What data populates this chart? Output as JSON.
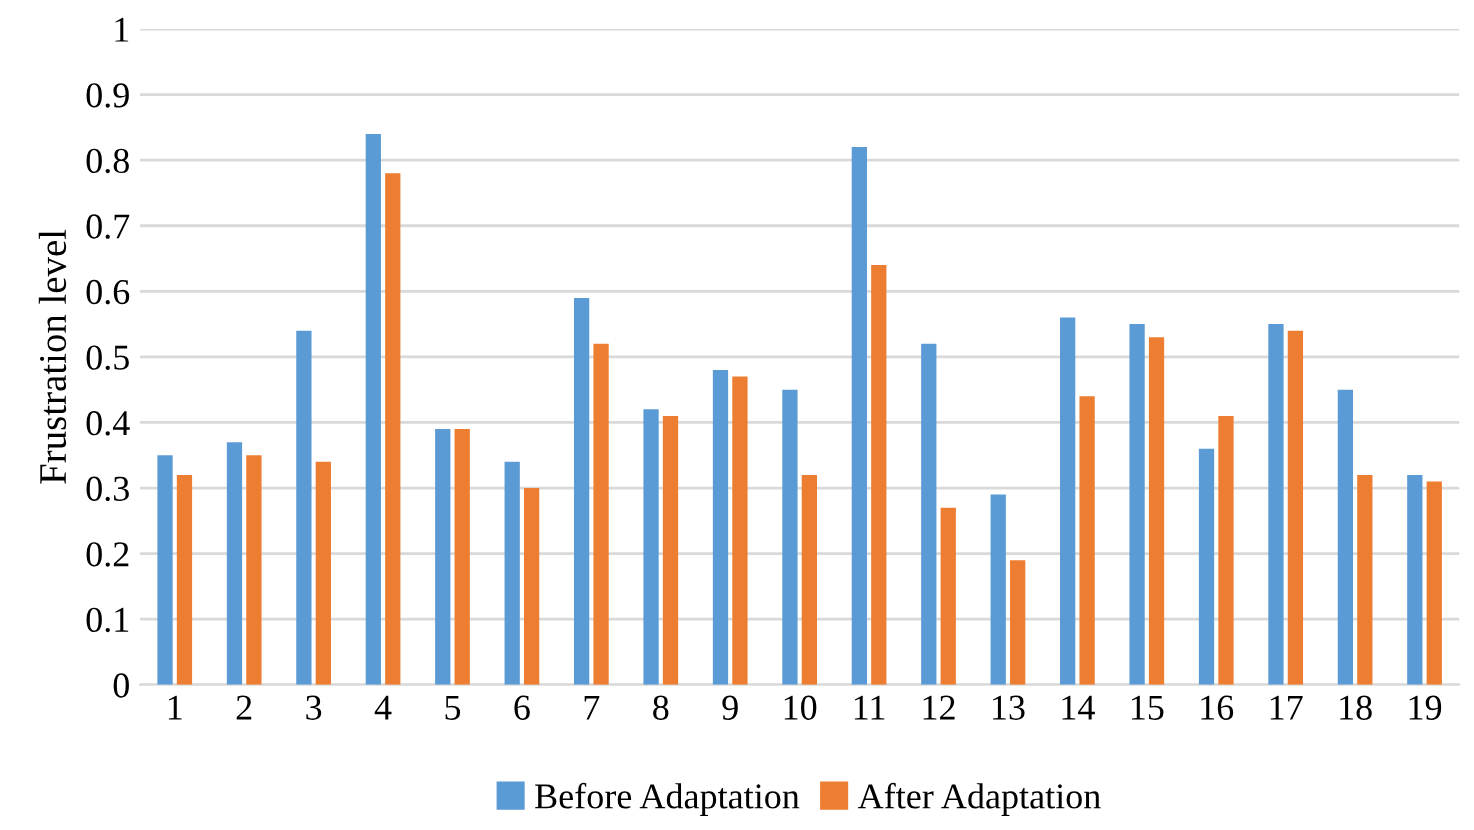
{
  "chart_data": {
    "type": "bar",
    "ylabel": "Frustration level",
    "categories": [
      "1",
      "2",
      "3",
      "4",
      "5",
      "6",
      "7",
      "8",
      "9",
      "10",
      "11",
      "12",
      "13",
      "14",
      "15",
      "16",
      "17",
      "18",
      "19"
    ],
    "series": [
      {
        "name": "Before Adaptation",
        "color": "#5b9bd5",
        "values": [
          0.35,
          0.37,
          0.54,
          0.84,
          0.39,
          0.34,
          0.59,
          0.42,
          0.48,
          0.45,
          0.82,
          0.52,
          0.29,
          0.56,
          0.55,
          0.36,
          0.55,
          0.45,
          0.32
        ]
      },
      {
        "name": "After Adaptation",
        "color": "#ed7d31",
        "values": [
          0.32,
          0.35,
          0.34,
          0.78,
          0.39,
          0.3,
          0.52,
          0.41,
          0.47,
          0.32,
          0.64,
          0.27,
          0.19,
          0.44,
          0.53,
          0.41,
          0.54,
          0.32,
          0.31
        ]
      }
    ],
    "ylim": [
      0,
      1
    ],
    "yticks": [
      0,
      {
        "value": 0.1,
        "label": "0.1"
      },
      {
        "value": 0.2,
        "label": "0.2"
      },
      {
        "value": 0.3,
        "label": "0.3"
      },
      {
        "value": 0.4,
        "label": "0.4"
      },
      {
        "value": 0.5,
        "label": "0.5"
      },
      {
        "value": 0.6,
        "label": "0.6"
      },
      {
        "value": 0.7,
        "label": "0.7"
      },
      {
        "value": 0.8,
        "label": "0.8"
      },
      {
        "value": 0.9,
        "label": "0.9"
      },
      1
    ],
    "grid": "y",
    "legend": "bottom"
  }
}
